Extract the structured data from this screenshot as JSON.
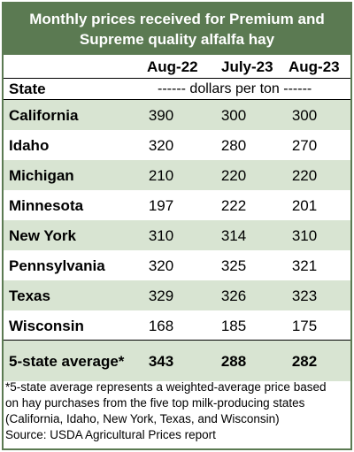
{
  "title": {
    "line1": "Monthly prices received for Premium and",
    "line2": "Supreme quality alfalfa hay"
  },
  "colors": {
    "header_green": "#5b7a52",
    "stripe_green": "#d8e4d2"
  },
  "chart_data": {
    "type": "table",
    "title": "Monthly prices received for Premium and Supreme quality alfalfa hay",
    "columns": [
      "Aug-22",
      "July-23",
      "Aug-23"
    ],
    "row_header": "State",
    "units": "------ dollars per ton ------",
    "rows": [
      {
        "state": "California",
        "values": [
          "390",
          "300",
          "300"
        ]
      },
      {
        "state": "Idaho",
        "values": [
          "320",
          "280",
          "270"
        ]
      },
      {
        "state": "Michigan",
        "values": [
          "210",
          "220",
          "220"
        ]
      },
      {
        "state": "Minnesota",
        "values": [
          "197",
          "222",
          "201"
        ]
      },
      {
        "state": "New York",
        "values": [
          "310",
          "314",
          "310"
        ]
      },
      {
        "state": "Pennsylvania",
        "values": [
          "320",
          "325",
          "321"
        ]
      },
      {
        "state": "Texas",
        "values": [
          "329",
          "326",
          "323"
        ]
      },
      {
        "state": "Wisconsin",
        "values": [
          "168",
          "185",
          "175"
        ]
      }
    ],
    "average": {
      "state": "5-state average*",
      "values": [
        "343",
        "288",
        "282"
      ]
    }
  },
  "footnote": {
    "line1": "*5-state average represents  a weighted-average price based",
    "line2": "on hay purchases from the five top milk-producing states",
    "line3": "(California, Idaho, New York, Texas, and Wisconsin)",
    "line4": "Source: USDA Agricultural Prices report"
  }
}
